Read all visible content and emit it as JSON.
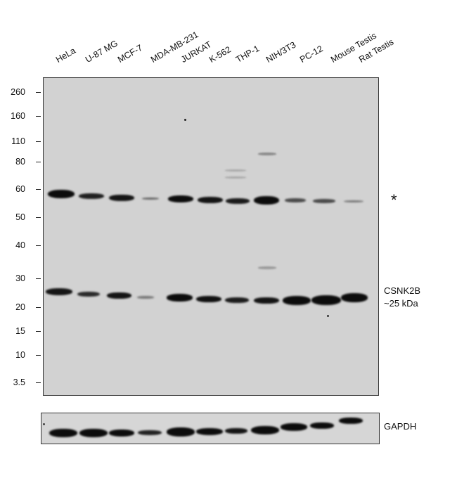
{
  "lanes": [
    "HeLa",
    "U-87 MG",
    "MCF-7",
    "MDA-MB-231",
    "JURKAT",
    "K-562",
    "THP-1",
    "NIH/3T3",
    "PC-12",
    "Mouse Testis",
    "Rat Testis"
  ],
  "mw_markers": [
    "260",
    "160",
    "110",
    "80",
    "60",
    "50",
    "40",
    "30",
    "20",
    "15",
    "10",
    "3.5"
  ],
  "labels": {
    "asterisk": "*",
    "target_name": "CSNK2B",
    "target_size": "~25 kDa",
    "loading_control": "GAPDH"
  },
  "band_intensity": {
    "upper_60kDa": [
      0.95,
      0.7,
      0.8,
      0.25,
      0.85,
      0.75,
      0.7,
      0.95,
      0.45,
      0.45,
      0.25
    ],
    "target_25kDa": [
      0.7,
      0.5,
      0.75,
      0.2,
      0.85,
      0.7,
      0.6,
      0.75,
      0.9,
      0.95,
      0.85
    ],
    "gapdh": [
      0.9,
      0.9,
      0.8,
      0.55,
      0.95,
      0.75,
      0.65,
      0.85,
      0.8,
      0.7,
      0.75
    ]
  }
}
